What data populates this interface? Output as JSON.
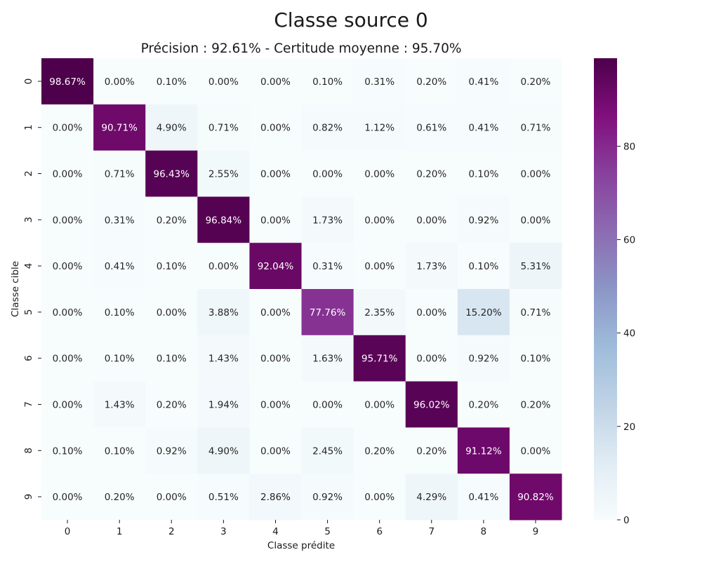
{
  "chart_data": {
    "type": "heatmap",
    "title": "Classe source 0",
    "subtitle": "Précision : 92.61% - Certitude moyenne : 95.70%",
    "xlabel": "Classe prédite",
    "ylabel": "Classe cible",
    "x_categories": [
      "0",
      "1",
      "2",
      "3",
      "4",
      "5",
      "6",
      "7",
      "8",
      "9"
    ],
    "y_categories": [
      "0",
      "1",
      "2",
      "3",
      "4",
      "5",
      "6",
      "7",
      "8",
      "9"
    ],
    "values": [
      [
        98.67,
        0.0,
        0.1,
        0.0,
        0.0,
        0.1,
        0.31,
        0.2,
        0.41,
        0.2
      ],
      [
        0.0,
        90.71,
        4.9,
        0.71,
        0.0,
        0.82,
        1.12,
        0.61,
        0.41,
        0.71
      ],
      [
        0.0,
        0.71,
        96.43,
        2.55,
        0.0,
        0.0,
        0.0,
        0.2,
        0.1,
        0.0
      ],
      [
        0.0,
        0.31,
        0.2,
        96.84,
        0.0,
        1.73,
        0.0,
        0.0,
        0.92,
        0.0
      ],
      [
        0.0,
        0.41,
        0.1,
        0.0,
        92.04,
        0.31,
        0.0,
        1.73,
        0.1,
        5.31
      ],
      [
        0.0,
        0.1,
        0.0,
        3.88,
        0.0,
        77.76,
        2.35,
        0.0,
        15.2,
        0.71
      ],
      [
        0.0,
        0.1,
        0.1,
        1.43,
        0.0,
        1.63,
        95.71,
        0.0,
        0.92,
        0.1
      ],
      [
        0.0,
        1.43,
        0.2,
        1.94,
        0.0,
        0.0,
        0.0,
        96.02,
        0.2,
        0.2
      ],
      [
        0.1,
        0.1,
        0.92,
        4.9,
        0.0,
        2.45,
        0.2,
        0.2,
        91.12,
        0.0
      ],
      [
        0.0,
        0.2,
        0.0,
        0.51,
        2.86,
        0.92,
        0.0,
        4.29,
        0.41,
        90.82
      ]
    ],
    "value_format": "percent_2dp",
    "colormap": "BuPu",
    "colorbar": {
      "range": [
        0,
        98.84
      ],
      "ticks": [
        0,
        20,
        40,
        60,
        80
      ]
    },
    "colors": {
      "stops": [
        "#f7fcfd",
        "#e0ecf4",
        "#bfd3e6",
        "#9ebcda",
        "#8c96c6",
        "#8c6bb1",
        "#88419d",
        "#810f7c",
        "#4d004b"
      ],
      "light_text": "#ffffff",
      "dark_text": "#262626"
    }
  }
}
